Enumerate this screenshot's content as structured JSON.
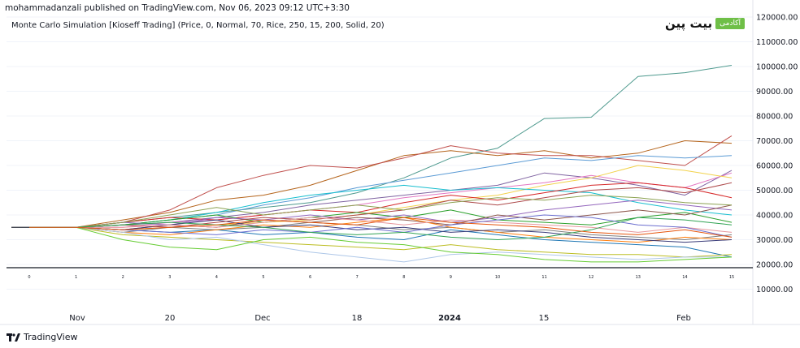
{
  "header": {
    "published": "mohammadanzali published on TradingView.com, Nov 06, 2023 09:12 UTC+3:30"
  },
  "study": {
    "label": "Monte Carlo Simulation [Kioseff Trading] (Price, 0, Normal, 70, Rice, 250, 15, 200, Solid, 20)"
  },
  "brand": {
    "word": "بیت پین",
    "tag": "آکادمی"
  },
  "footer": {
    "logo_text": "TradingView"
  },
  "colors": {
    "axis": "#131722",
    "grid": "#f0f3fa",
    "tag_green": "#6fbf47"
  },
  "chart_data": {
    "type": "line",
    "ylim": [
      0,
      120000
    ],
    "y_ticks": [
      "10000.00",
      "20000.00",
      "30000.00",
      "40000.00",
      "50000.00",
      "60000.00",
      "70000.00",
      "80000.00",
      "90000.00",
      "100000.00",
      "110000.00",
      "120000.00"
    ],
    "y_tick_values": [
      10000,
      20000,
      30000,
      40000,
      50000,
      60000,
      70000,
      80000,
      90000,
      100000,
      110000,
      120000
    ],
    "x_date_labels": [
      "Nov",
      "20",
      "Dec",
      "18",
      "2024",
      "15",
      "Feb"
    ],
    "step_labels": [
      "0",
      "1",
      "2",
      "3",
      "4",
      "5",
      "6",
      "7",
      "8",
      "9",
      "10",
      "11",
      "12",
      "13",
      "14",
      "15"
    ],
    "history": {
      "color": "#2a2e39",
      "values": [
        35000,
        35000
      ]
    },
    "series": [
      {
        "color": "#4e9a8e",
        "values": [
          35000,
          35000,
          37000,
          39000,
          41000,
          43000,
          45000,
          49000,
          55000,
          63000,
          67000,
          79000,
          79500,
          96000,
          97500,
          100500
        ]
      },
      {
        "color": "#b5651d",
        "values": [
          35000,
          35000,
          38000,
          41000,
          46000,
          48000,
          52000,
          58000,
          64000,
          66000,
          64000,
          66000,
          63000,
          65000,
          70000,
          69000
        ]
      },
      {
        "color": "#c0504d",
        "values": [
          35000,
          35000,
          37000,
          42000,
          51000,
          56000,
          60000,
          59000,
          63000,
          68000,
          65000,
          64000,
          64000,
          62000,
          60000,
          72000
        ]
      },
      {
        "color": "#5b9bd5",
        "values": [
          35000,
          35000,
          36000,
          38000,
          40000,
          44000,
          47000,
          51000,
          54000,
          57000,
          60000,
          63000,
          62000,
          64000,
          63000,
          64000
        ]
      },
      {
        "color": "#8064a2",
        "values": [
          35000,
          35000,
          36000,
          37000,
          39000,
          41000,
          44000,
          46000,
          48000,
          50000,
          52000,
          57000,
          55000,
          52000,
          48000,
          58000
        ]
      },
      {
        "color": "#e377c2",
        "values": [
          35000,
          35000,
          35000,
          37000,
          38000,
          40000,
          42000,
          44000,
          47000,
          49000,
          51000,
          53000,
          56000,
          53000,
          51000,
          57000
        ]
      },
      {
        "color": "#f2d24b",
        "values": [
          35000,
          35000,
          34000,
          35000,
          36000,
          37000,
          38000,
          40000,
          43000,
          46000,
          48000,
          52000,
          55000,
          60000,
          58000,
          55000
        ]
      },
      {
        "color": "#17becf",
        "values": [
          35000,
          35000,
          36000,
          38000,
          41000,
          45000,
          48000,
          50000,
          52000,
          50000,
          51000,
          50000,
          49000,
          45000,
          42000,
          40000
        ]
      },
      {
        "color": "#d62728",
        "values": [
          35000,
          35000,
          37000,
          39000,
          38000,
          40000,
          42000,
          41000,
          45000,
          48000,
          46000,
          49000,
          52000,
          53000,
          51000,
          47000
        ]
      },
      {
        "color": "#2ca02c",
        "values": [
          35000,
          35000,
          36000,
          38000,
          40000,
          37000,
          39000,
          41000,
          39000,
          42000,
          38000,
          37000,
          36000,
          39000,
          41000,
          37000
        ]
      },
      {
        "color": "#9467bd",
        "values": [
          35000,
          35000,
          37000,
          36000,
          39000,
          38000,
          40000,
          38000,
          40000,
          37000,
          39000,
          42000,
          44000,
          46000,
          44000,
          42000
        ]
      },
      {
        "color": "#8c564b",
        "values": [
          35000,
          35000,
          34000,
          36000,
          35000,
          38000,
          37000,
          39000,
          38000,
          36000,
          40000,
          38000,
          40000,
          42000,
          40000,
          44000
        ]
      },
      {
        "color": "#7f7f7f",
        "values": [
          35000,
          35000,
          33000,
          35000,
          34000,
          35000,
          37000,
          36000,
          34000,
          35000,
          33000,
          34000,
          32000,
          31000,
          30000,
          32000
        ]
      },
      {
        "color": "#1f77b4",
        "values": [
          35000,
          35000,
          34000,
          33000,
          34000,
          32000,
          33000,
          31000,
          30000,
          34000,
          32000,
          30000,
          29000,
          28000,
          27000,
          23000
        ]
      },
      {
        "color": "#ff7f0e",
        "values": [
          35000,
          35000,
          33000,
          32000,
          34000,
          36000,
          35000,
          37000,
          39000,
          35000,
          33000,
          31000,
          30000,
          29000,
          31000,
          30000
        ]
      },
      {
        "color": "#bcbd22",
        "values": [
          35000,
          35000,
          32000,
          31000,
          30000,
          29000,
          28000,
          27000,
          26000,
          28000,
          26000,
          25000,
          24000,
          24000,
          23000,
          24000
        ]
      },
      {
        "color": "#aec7e8",
        "values": [
          35000,
          35000,
          33000,
          30000,
          31000,
          28000,
          25000,
          23000,
          21000,
          24000,
          25000,
          24000,
          23000,
          22000,
          23000,
          23000
        ]
      },
      {
        "color": "#66cc33",
        "values": [
          35000,
          35000,
          30000,
          27000,
          26000,
          30000,
          31000,
          29000,
          28000,
          25000,
          24000,
          22000,
          21000,
          21000,
          22000,
          23000
        ]
      },
      {
        "color": "#393b79",
        "values": [
          35000,
          35000,
          34000,
          36000,
          38000,
          35000,
          36000,
          34000,
          35000,
          33000,
          34000,
          33000,
          31000,
          30000,
          29000,
          30000
        ]
      },
      {
        "color": "#ad494a",
        "values": [
          35000,
          35000,
          36000,
          35000,
          37000,
          39000,
          38000,
          40000,
          42000,
          46000,
          44000,
          47000,
          50000,
          51000,
          49000,
          53000
        ]
      },
      {
        "color": "#e7969c",
        "values": [
          35000,
          35000,
          35000,
          36000,
          35000,
          37000,
          39000,
          38000,
          36000,
          38000,
          37000,
          36000,
          35000,
          33000,
          35000,
          33000
        ]
      },
      {
        "color": "#8ca252",
        "values": [
          35000,
          35000,
          37000,
          40000,
          43000,
          40000,
          42000,
          44000,
          42000,
          45000,
          47000,
          46000,
          48000,
          47000,
          45000,
          44000
        ]
      },
      {
        "color": "#6b6ecf",
        "values": [
          35000,
          35000,
          34000,
          33000,
          32000,
          34000,
          33000,
          35000,
          33000,
          36000,
          38000,
          40000,
          39000,
          36000,
          35000,
          31000
        ]
      },
      {
        "color": "#31a354",
        "values": [
          35000,
          35000,
          36000,
          37000,
          36000,
          35000,
          33000,
          32000,
          33000,
          31000,
          30000,
          31000,
          34000,
          39000,
          38000,
          36000
        ]
      },
      {
        "color": "#e6550d",
        "values": [
          35000,
          35000,
          34000,
          35000,
          36000,
          38000,
          37000,
          36000,
          39000,
          37000,
          36000,
          35000,
          33000,
          32000,
          34000,
          31000
        ]
      }
    ]
  }
}
